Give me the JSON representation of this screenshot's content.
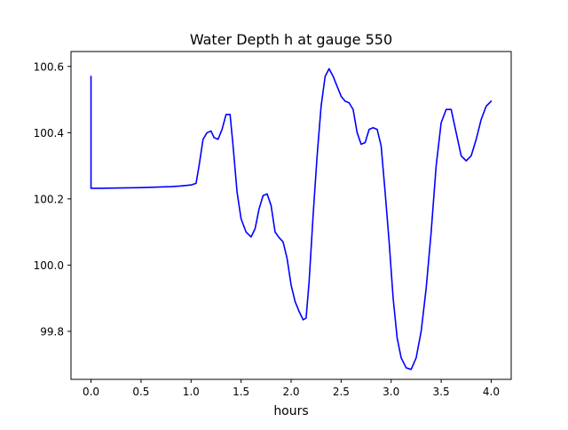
{
  "chart_data": {
    "type": "line",
    "title": "Water Depth h at gauge 550",
    "xlabel": "hours",
    "ylabel": "",
    "xlim": [
      -0.2,
      4.2
    ],
    "ylim": [
      99.655,
      100.645
    ],
    "xticks": [
      0.0,
      0.5,
      1.0,
      1.5,
      2.0,
      2.5,
      3.0,
      3.5,
      4.0
    ],
    "xtick_labels": [
      "0.0",
      "0.5",
      "1.0",
      "1.5",
      "2.0",
      "2.5",
      "3.0",
      "3.5",
      "4.0"
    ],
    "yticks": [
      99.8,
      100.0,
      100.2,
      100.4,
      100.6
    ],
    "ytick_labels": [
      "99.8",
      "100.0",
      "100.2",
      "100.4",
      "100.6"
    ],
    "grid": false,
    "legend": "none",
    "series": [
      {
        "name": "",
        "color": "#0000ff",
        "x": [
          0.0,
          0.0,
          0.0,
          0.1,
          0.3,
          0.5,
          0.6,
          0.7,
          0.8,
          0.9,
          1.0,
          1.05,
          1.08,
          1.12,
          1.16,
          1.2,
          1.23,
          1.27,
          1.31,
          1.35,
          1.39,
          1.42,
          1.46,
          1.5,
          1.55,
          1.6,
          1.64,
          1.68,
          1.72,
          1.76,
          1.8,
          1.84,
          1.88,
          1.92,
          1.96,
          2.0,
          2.04,
          2.08,
          2.12,
          2.15,
          2.18,
          2.22,
          2.26,
          2.3,
          2.34,
          2.38,
          2.42,
          2.46,
          2.5,
          2.54,
          2.58,
          2.62,
          2.66,
          2.7,
          2.74,
          2.78,
          2.82,
          2.86,
          2.9,
          2.94,
          2.98,
          3.02,
          3.06,
          3.1,
          3.15,
          3.2,
          3.25,
          3.3,
          3.35,
          3.4,
          3.45,
          3.5,
          3.55,
          3.6,
          3.65,
          3.7,
          3.75,
          3.8,
          3.85,
          3.9,
          3.95,
          4.0
        ],
        "y": [
          100.57,
          100.24,
          100.232,
          100.232,
          100.233,
          100.234,
          100.235,
          100.236,
          100.237,
          100.239,
          100.242,
          100.247,
          100.3,
          100.38,
          100.4,
          100.405,
          100.385,
          100.38,
          100.41,
          100.455,
          100.455,
          100.36,
          100.22,
          100.14,
          100.1,
          100.085,
          100.11,
          100.17,
          100.21,
          100.215,
          100.18,
          100.1,
          100.083,
          100.07,
          100.02,
          99.94,
          99.89,
          99.86,
          99.835,
          99.84,
          99.95,
          100.15,
          100.33,
          100.48,
          100.57,
          100.593,
          100.57,
          100.54,
          100.51,
          100.495,
          100.49,
          100.47,
          100.4,
          100.365,
          100.37,
          100.41,
          100.415,
          100.41,
          100.36,
          100.22,
          100.07,
          99.9,
          99.78,
          99.72,
          99.69,
          99.685,
          99.72,
          99.8,
          99.93,
          100.1,
          100.3,
          100.43,
          100.47,
          100.47,
          100.4,
          100.33,
          100.315,
          100.33,
          100.38,
          100.44,
          100.48,
          100.495
        ]
      }
    ]
  }
}
